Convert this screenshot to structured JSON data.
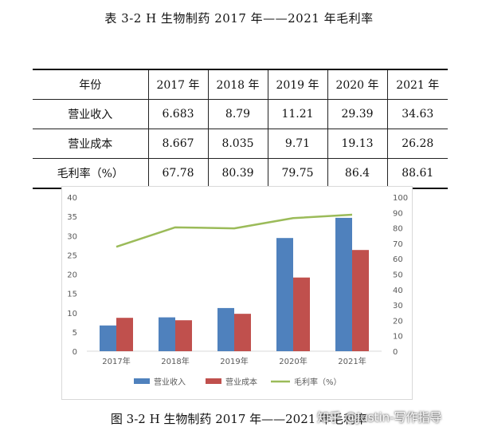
{
  "header_fragment": "",
  "table_title": "表 3-2   H 生物制药 2017 年——2021 年毛利率",
  "table": {
    "headers": [
      "年份",
      "2017 年",
      "2018 年",
      "2019 年",
      "2020 年",
      "2021 年"
    ],
    "rows": [
      [
        "营业收入",
        "6.683",
        "8.79",
        "11.21",
        "29.39",
        "34.63"
      ],
      [
        "营业成本",
        "8.667",
        "8.035",
        "9.71",
        "19.13",
        "26.28"
      ],
      [
        "毛利率（%）",
        "67.78",
        "80.39",
        "79.75",
        "86.4",
        "88.61"
      ]
    ]
  },
  "chart_data": {
    "type": "bar",
    "title": "",
    "xlabel": "",
    "ylabel": "",
    "categories": [
      "2017年",
      "2018年",
      "2019年",
      "2020年",
      "2021年"
    ],
    "series": [
      {
        "name": "营业收入",
        "type": "bar",
        "axis": "left",
        "color": "#4F81BD",
        "values": [
          6.683,
          8.79,
          11.21,
          29.39,
          34.63
        ]
      },
      {
        "name": "营业成本",
        "type": "bar",
        "axis": "left",
        "color": "#C0504D",
        "values": [
          8.667,
          8.035,
          9.71,
          19.13,
          26.28
        ]
      },
      {
        "name": "毛利率（%）",
        "type": "line",
        "axis": "right",
        "color": "#9BBB59",
        "values": [
          67.78,
          80.39,
          79.75,
          86.4,
          88.61
        ]
      }
    ],
    "ylim_left": [
      0,
      40
    ],
    "yticks_left": [
      "0",
      "5",
      "10",
      "15",
      "20",
      "25",
      "30",
      "35",
      "40"
    ],
    "ylim_right": [
      0,
      100
    ],
    "yticks_right": [
      "0",
      "10",
      "20",
      "30",
      "40",
      "50",
      "60",
      "70",
      "80",
      "90",
      "100"
    ],
    "grid": false,
    "legend_position": "bottom"
  },
  "figure_caption": "图 3-2   H 生物制药 2017 年——2021 年毛利率",
  "watermark": "知乎 @Justin-写作指导"
}
